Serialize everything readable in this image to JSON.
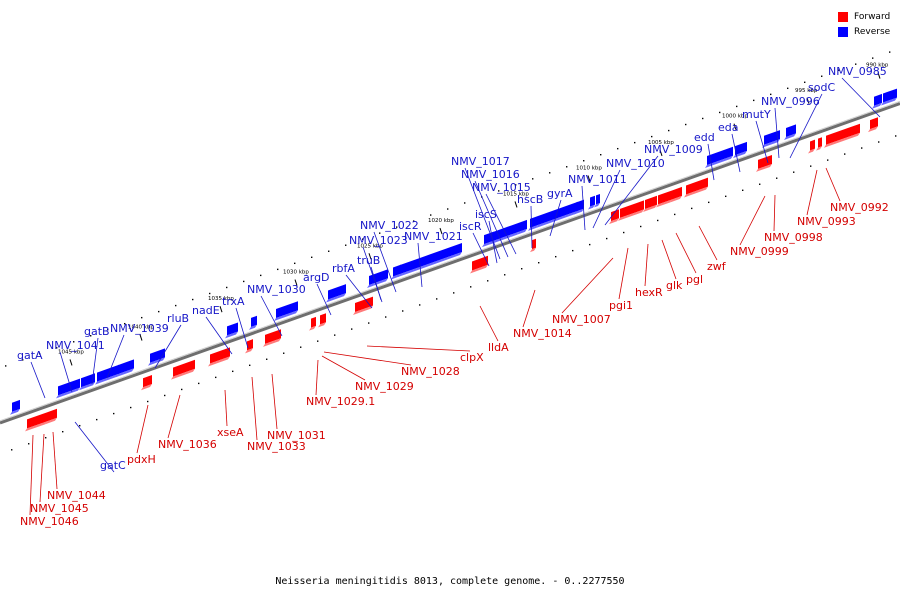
{
  "caption": "Neisseria meningitidis 8013, complete genome. - 0..2277550",
  "legend": [
    {
      "name": "Forward",
      "color": "#ff0000"
    },
    {
      "name": "Reverse",
      "color": "#0000ff"
    }
  ],
  "colors": {
    "forward": "#ff0000",
    "reverse": "#0000ff",
    "forward_label": "#d40000",
    "reverse_label": "#1616c8",
    "backbone": "#6e6e6e"
  },
  "ticks": [
    "1045 kbp",
    "1040 kbp",
    "1035 kbp",
    "1030 kbp",
    "1025 kbp",
    "1020 kbp",
    "1015 kbp",
    "1010 kbp",
    "1005 kbp",
    "1000 kbp",
    "995 kbp",
    "990 kbp"
  ],
  "forward_genes": [
    "NMV_1046",
    "NMV_1045",
    "NMV_1044",
    "pdxH",
    "NMV_1036",
    "xseA",
    "NMV_1033",
    "NMV_1031",
    "NMV_1029.1",
    "NMV_1029",
    "NMV_1028",
    "clpX",
    "lldA",
    "NMV_1014",
    "NMV_1007",
    "pgi1",
    "hexR",
    "glk",
    "pgl",
    "zwf",
    "NMV_0999",
    "NMV_0998",
    "NMV_0993",
    "NMV_0992"
  ],
  "reverse_genes": [
    "gatA",
    "NMV_1041",
    "gatB",
    "NMV_1039",
    "gatC",
    "rluB",
    "nadE",
    "trxA",
    "NMV_1030",
    "argD",
    "rbfA",
    "truB",
    "NMV_1023",
    "NMV_1022",
    "NMV_1021",
    "iscR",
    "iscS",
    "NMV_1017",
    "NMV_1016",
    "NMV_1015",
    "hscB",
    "gyrA",
    "NMV_1011",
    "NMV_1010",
    "NMV_1009",
    "edd",
    "eda",
    "mutY",
    "NMV_0996",
    "sodC",
    "NMV_0985"
  ]
}
